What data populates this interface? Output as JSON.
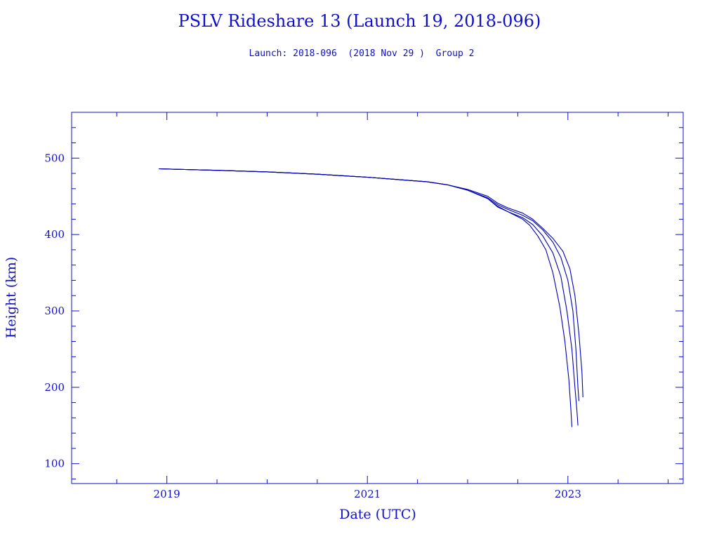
{
  "chart_data": {
    "type": "line",
    "title": "PSLV Rideshare 13 (Launch 19, 2018-096)",
    "subtitle": "Launch: 2018-096  (2018 Nov 29 )  Group 2",
    "xlabel": "Date (UTC)",
    "ylabel": "Height (km)",
    "x_unit": "year",
    "xlim": [
      2018.05,
      2024.15
    ],
    "ylim": [
      74,
      560
    ],
    "x_ticks": [
      2019,
      2021,
      2023
    ],
    "y_ticks": [
      100,
      200,
      300,
      400,
      500
    ],
    "grid": false,
    "legend": "none",
    "colors": {
      "line": "#0000b4",
      "axis": "#1010c8",
      "text": "#1010c8"
    },
    "series": [
      {
        "x": [
          2018.92,
          2019.5,
          2020.0,
          2020.5,
          2021.0,
          2021.3,
          2021.6,
          2021.8,
          2022.0,
          2022.2,
          2022.3,
          2022.4,
          2022.55,
          2022.62,
          2022.7,
          2022.78,
          2022.85,
          2022.92,
          2022.97,
          2023.01,
          2023.03,
          2023.04
        ],
        "y": [
          486,
          484,
          482,
          479,
          475,
          472,
          469,
          465,
          458,
          447,
          436,
          430,
          420,
          412,
          398,
          380,
          350,
          305,
          260,
          210,
          170,
          148
        ]
      },
      {
        "x": [
          2018.92,
          2019.5,
          2020.0,
          2020.5,
          2021.0,
          2021.3,
          2021.6,
          2021.8,
          2022.0,
          2022.2,
          2022.3,
          2022.4,
          2022.55,
          2022.65,
          2022.75,
          2022.85,
          2022.93,
          2023.0,
          2023.05,
          2023.08,
          2023.1,
          2023.11
        ],
        "y": [
          486,
          484,
          482,
          479,
          475,
          472,
          469,
          465,
          458,
          448,
          439,
          433,
          425,
          418,
          406,
          390,
          370,
          340,
          300,
          250,
          200,
          182
        ]
      },
      {
        "x": [
          2018.92,
          2019.5,
          2020.0,
          2020.5,
          2021.0,
          2021.3,
          2021.6,
          2021.8,
          2022.0,
          2022.2,
          2022.3,
          2022.4,
          2022.55,
          2022.65,
          2022.75,
          2022.85,
          2022.93,
          2022.99,
          2023.04,
          2023.07,
          2023.09,
          2023.1
        ],
        "y": [
          486,
          484,
          482,
          479,
          475,
          472,
          469,
          465,
          458,
          447,
          437,
          430,
          422,
          413,
          398,
          376,
          345,
          300,
          250,
          200,
          170,
          150
        ]
      },
      {
        "x": [
          2018.92,
          2019.5,
          2020.0,
          2020.5,
          2021.0,
          2021.3,
          2021.6,
          2021.8,
          2022.0,
          2022.2,
          2022.3,
          2022.4,
          2022.55,
          2022.65,
          2022.75,
          2022.85,
          2022.95,
          2023.02,
          2023.07,
          2023.11,
          2023.14,
          2023.15
        ],
        "y": [
          486,
          484,
          482,
          479,
          475,
          472,
          469,
          465,
          459,
          450,
          441,
          435,
          428,
          420,
          408,
          395,
          378,
          355,
          320,
          270,
          220,
          187
        ]
      }
    ]
  }
}
